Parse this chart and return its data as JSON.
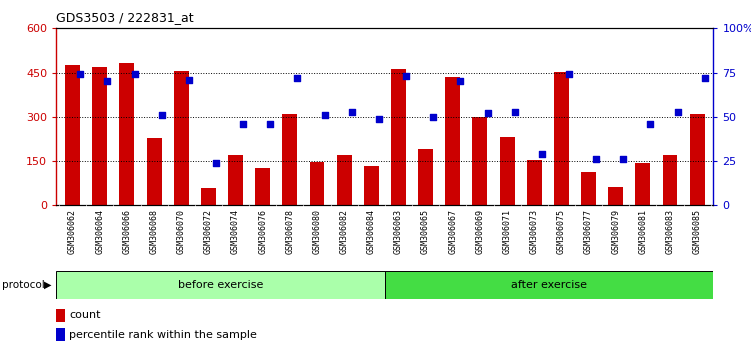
{
  "title": "GDS3503 / 222831_at",
  "samples": [
    "GSM306062",
    "GSM306064",
    "GSM306066",
    "GSM306068",
    "GSM306070",
    "GSM306072",
    "GSM306074",
    "GSM306076",
    "GSM306078",
    "GSM306080",
    "GSM306082",
    "GSM306084",
    "GSM306063",
    "GSM306065",
    "GSM306067",
    "GSM306069",
    "GSM306071",
    "GSM306073",
    "GSM306075",
    "GSM306077",
    "GSM306079",
    "GSM306081",
    "GSM306083",
    "GSM306085"
  ],
  "counts": [
    476,
    468,
    481,
    228,
    455,
    58,
    172,
    128,
    308,
    148,
    170,
    132,
    463,
    192,
    435,
    298,
    233,
    153,
    453,
    113,
    63,
    143,
    172,
    308
  ],
  "percentiles": [
    74,
    70,
    74,
    51,
    71,
    24,
    46,
    46,
    72,
    51,
    53,
    49,
    73,
    50,
    70,
    52,
    53,
    29,
    74,
    26,
    26,
    46,
    53,
    72
  ],
  "bar_color": "#CC0000",
  "dot_color": "#0000CC",
  "left_ylim": [
    0,
    600
  ],
  "right_ylim": [
    0,
    100
  ],
  "left_yticks": [
    0,
    150,
    300,
    450,
    600
  ],
  "right_yticks": [
    0,
    25,
    50,
    75,
    100
  ],
  "right_yticklabels": [
    "0",
    "25",
    "50",
    "75",
    "100%"
  ],
  "before_exercise_count": 12,
  "after_exercise_count": 12,
  "protocol_label": "protocol",
  "before_label": "before exercise",
  "after_label": "after exercise",
  "before_color": "#AAFFAA",
  "after_color": "#44DD44",
  "legend_count": "count",
  "legend_percentile": "percentile rank within the sample",
  "background_color": "#ffffff",
  "plot_bg_color": "#ffffff",
  "tick_label_color_left": "#CC0000",
  "tick_label_color_right": "#0000CC",
  "xlabels_bg_color": "#CCCCCC"
}
